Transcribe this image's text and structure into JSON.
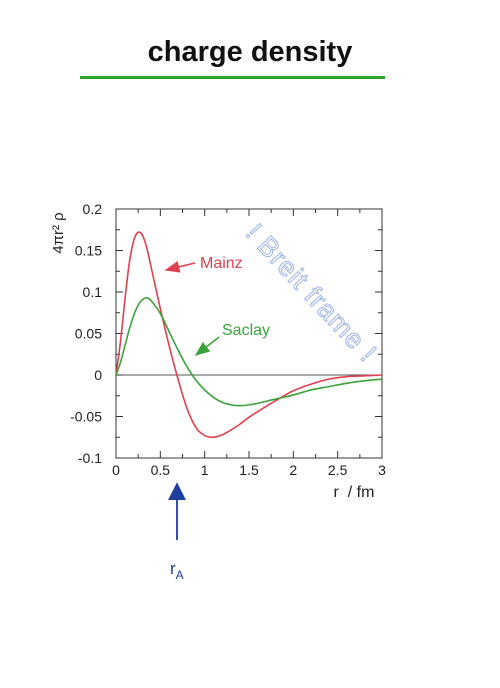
{
  "page": {
    "title": "charge density",
    "watermark": "! Breit frame !",
    "accent_color": "#2aa52a"
  },
  "chart_data": {
    "type": "line",
    "title": "",
    "xlabel": "r  / fm",
    "ylabel": "4πr² ρ",
    "xlim": [
      0,
      3
    ],
    "ylim": [
      -0.1,
      0.2
    ],
    "x_ticks": [
      "0",
      "0.5",
      "1",
      "1.5",
      "2",
      "2.5",
      "3"
    ],
    "x_tick_values": [
      0,
      0.5,
      1,
      1.5,
      2,
      2.5,
      3
    ],
    "y_ticks": [
      "-0.1",
      "-0.05",
      "0",
      "0.05",
      "0.1",
      "0.15",
      "0.2"
    ],
    "y_tick_values": [
      -0.1,
      -0.05,
      0,
      0.05,
      0.1,
      0.15,
      0.2
    ],
    "grid": false,
    "series": [
      {
        "name": "Mainz",
        "color": "#e0404e",
        "x": [
          0,
          0.05,
          0.1,
          0.15,
          0.2,
          0.25,
          0.3,
          0.35,
          0.4,
          0.5,
          0.6,
          0.7,
          0.8,
          0.9,
          1.0,
          1.1,
          1.2,
          1.3,
          1.4,
          1.5,
          1.6,
          1.8,
          2.0,
          2.2,
          2.4,
          2.6,
          2.8,
          3.0
        ],
        "y": [
          0,
          0.04,
          0.09,
          0.135,
          0.162,
          0.172,
          0.168,
          0.152,
          0.128,
          0.08,
          0.035,
          -0.005,
          -0.04,
          -0.063,
          -0.073,
          -0.075,
          -0.072,
          -0.066,
          -0.059,
          -0.051,
          -0.044,
          -0.031,
          -0.019,
          -0.011,
          -0.005,
          -0.002,
          -0.001,
          0
        ]
      },
      {
        "name": "Saclay",
        "color": "#3aa33a",
        "x": [
          0,
          0.05,
          0.1,
          0.15,
          0.2,
          0.25,
          0.3,
          0.35,
          0.4,
          0.5,
          0.6,
          0.7,
          0.8,
          0.9,
          1.0,
          1.1,
          1.2,
          1.3,
          1.4,
          1.5,
          1.6,
          1.8,
          2.0,
          2.2,
          2.4,
          2.6,
          2.8,
          3.0
        ],
        "y": [
          0,
          0.015,
          0.035,
          0.055,
          0.072,
          0.084,
          0.091,
          0.093,
          0.089,
          0.074,
          0.052,
          0.03,
          0.01,
          -0.006,
          -0.018,
          -0.027,
          -0.033,
          -0.036,
          -0.037,
          -0.036,
          -0.034,
          -0.029,
          -0.024,
          -0.018,
          -0.014,
          -0.01,
          -0.007,
          -0.005
        ]
      }
    ],
    "annotations": [
      {
        "text": "Mainz",
        "color": "#e0404e"
      },
      {
        "text": "Saclay",
        "color": "#3aa33a"
      },
      {
        "text": "r",
        "subscript": "A",
        "color": "#1e3ea0",
        "x": 0.7
      }
    ]
  }
}
